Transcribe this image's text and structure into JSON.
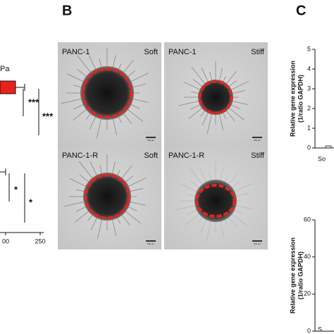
{
  "panel_a": {
    "legend_fragment": "Pa",
    "significance": [
      "***",
      "***",
      "*",
      "*"
    ],
    "x_ticks": [
      "00",
      "250"
    ]
  },
  "panel_b": {
    "letter": "B",
    "images": [
      {
        "cell_line": "PANC-1",
        "condition": "Soft",
        "scale": "100 µm"
      },
      {
        "cell_line": "PANC-1",
        "condition": "Stiff",
        "scale": "100 µm"
      },
      {
        "cell_line": "PANC-1-R",
        "condition": "Soft",
        "scale": "100 µm"
      },
      {
        "cell_line": "PANC-1-R",
        "condition": "Stiff",
        "scale": "100 µm"
      }
    ]
  },
  "panel_c": {
    "letter": "C",
    "charts": [
      {
        "y_label_line1": "Relative gene expression",
        "y_label_line2": "(1/ratio GAPDH)",
        "y_ticks": [
          "5",
          "4",
          "3",
          "2",
          "1",
          "0"
        ],
        "x_fragment": "So"
      },
      {
        "y_label_line1": "Relative gene expression",
        "y_label_line2": "(1/ratio GAPDH)",
        "y_ticks": [
          "60",
          "40",
          "20",
          "0"
        ],
        "x_fragment": "S"
      }
    ]
  }
}
